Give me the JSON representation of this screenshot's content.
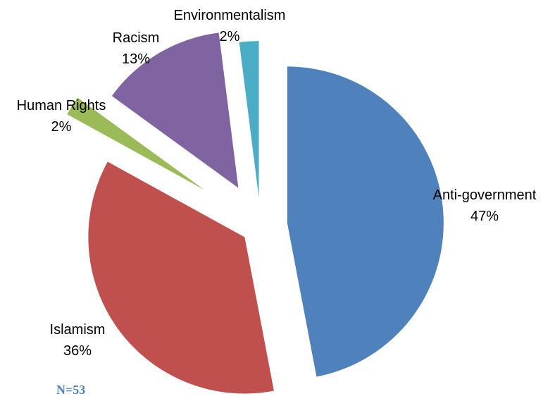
{
  "chart_data": {
    "type": "pie",
    "exploded": true,
    "slices": [
      {
        "label": "Anti-government",
        "value": 47,
        "value_label": "47%",
        "color": "#4F81BD"
      },
      {
        "label": "Islamism",
        "value": 36,
        "value_label": "36%",
        "color": "#C0504D"
      },
      {
        "label": "Human Rights",
        "value": 2,
        "value_label": "2%",
        "color": "#9BBB59"
      },
      {
        "label": "Racism",
        "value": 13,
        "value_label": "13%",
        "color": "#8064A2"
      },
      {
        "label": "Environmentalism",
        "value": 2,
        "value_label": "2%",
        "color": "#4BACC6"
      }
    ]
  },
  "footnote": {
    "text": "N=53",
    "color": "#4F81BD"
  }
}
